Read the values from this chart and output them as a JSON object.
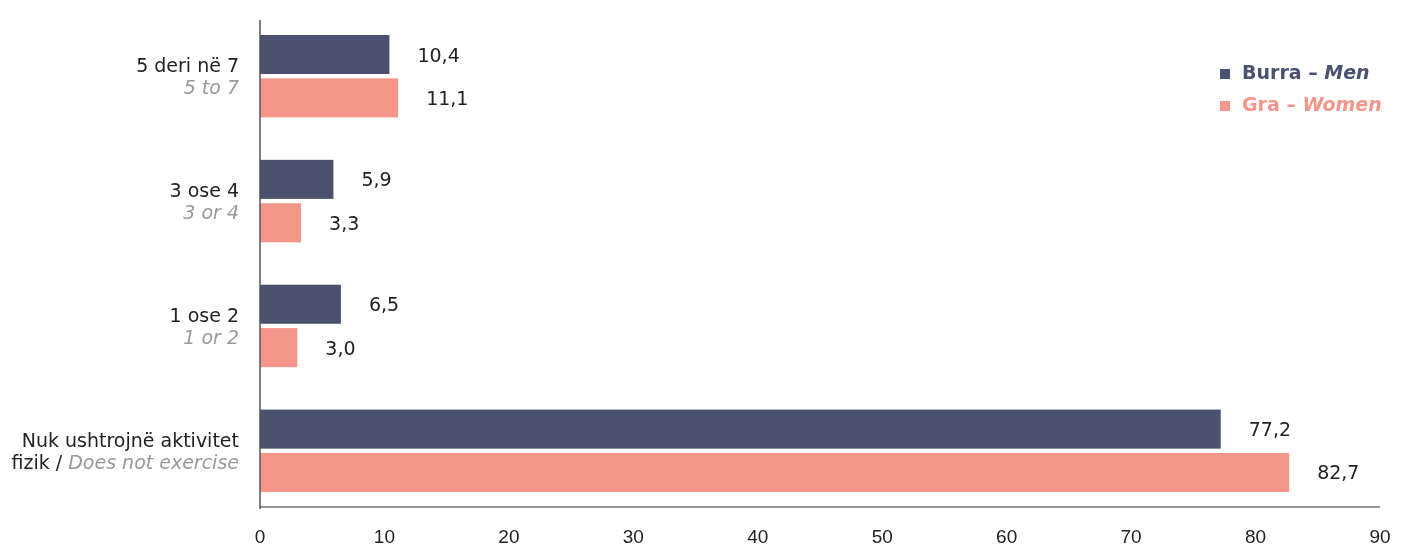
{
  "chart_data": {
    "type": "bar",
    "orientation": "horizontal",
    "categories": [
      "5 deri në 7\n5 to 7",
      "3 ose 4\n3 or 4",
      "1 ose 2\n1 or 2",
      "Nuk ushtrojnë aktivitet\nfizik / Does not exercise"
    ],
    "series": [
      {
        "name": "Burra – Men",
        "color": "#4a5270",
        "values": [
          10.4,
          5.9,
          6.5,
          77.2
        ],
        "value_labels": [
          "10,4",
          "5,9",
          "6,5",
          "77,2"
        ]
      },
      {
        "name": "Gra – Women",
        "color": "#f4968a",
        "values": [
          11.1,
          3.3,
          3.0,
          82.7
        ],
        "value_labels": [
          "11,1",
          "3,3",
          "3,0",
          "82,7"
        ]
      }
    ],
    "xlim": [
      0,
      90
    ],
    "xticks": [
      0,
      10,
      20,
      30,
      40,
      50,
      60,
      70,
      80,
      90
    ],
    "grid": false,
    "legend": "top right"
  }
}
